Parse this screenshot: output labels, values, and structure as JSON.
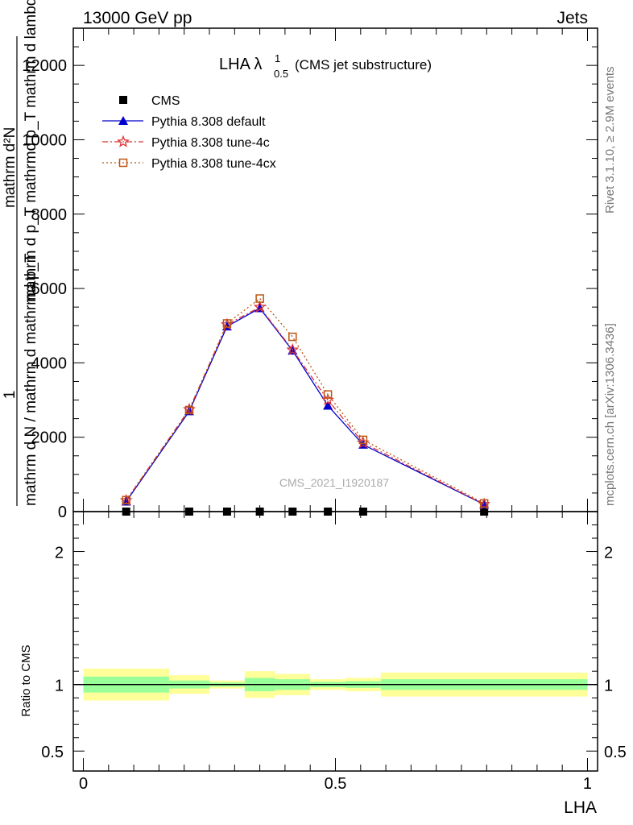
{
  "header": {
    "left": "13000 GeV pp",
    "right": "Jets"
  },
  "title": {
    "main": "LHA λ",
    "sup": "1",
    "sub": "0.5",
    "suffix": "(CMS jet substructure)"
  },
  "side_labels": {
    "rivet": "Rivet 3.1.10, ≥ 2.9M events",
    "mcplots": "mcplots.cern.ch [arXiv:1306.3436]"
  },
  "watermark": "CMS_2021_I1920187",
  "y_label_main": {
    "numerator": "mathrm d²N",
    "denominator": "mathrm d p_T mathrmd p_T mathrm d lambda",
    "prefix_num": "1",
    "prefix_den": "mathrm d N / mathrm d mathrmd p_T"
  },
  "y_label_ratio": "Ratio to CMS",
  "x_label": "LHA",
  "chart_data": [
    {
      "type": "line",
      "panel": "main",
      "xlim": [
        -0.02,
        1.02
      ],
      "ylim": [
        0,
        13000
      ],
      "y_ticks": [
        0,
        2000,
        4000,
        6000,
        8000,
        10000,
        12000
      ],
      "y_tick_labels": [
        "0",
        "2000",
        "4000",
        "6000",
        "8000",
        "10000",
        "12000"
      ],
      "legend_position": "top-left",
      "x": [
        0.085,
        0.21,
        0.285,
        0.35,
        0.415,
        0.485,
        0.555,
        0.795
      ],
      "series": [
        {
          "name": "CMS",
          "color": "#000000",
          "marker": "square",
          "values": [
            0,
            0,
            0,
            0,
            0,
            0,
            0,
            0
          ]
        },
        {
          "name": "Pythia 8.308 default",
          "color": "#0000cc",
          "marker": "triangle",
          "values": [
            270,
            2700,
            4980,
            5470,
            4330,
            2850,
            1800,
            190
          ]
        },
        {
          "name": "Pythia 8.308 tune-4c",
          "color": "#dd3333",
          "marker": "star",
          "values": [
            300,
            2750,
            5030,
            5500,
            4350,
            3000,
            1850,
            200
          ]
        },
        {
          "name": "Pythia 8.308 tune-4cx",
          "color": "#bb5511",
          "marker": "open-square",
          "values": [
            310,
            2730,
            5060,
            5730,
            4700,
            3150,
            1930,
            220
          ]
        }
      ]
    },
    {
      "type": "area",
      "panel": "ratio",
      "xlim": [
        -0.02,
        1.02
      ],
      "ylim": [
        0.35,
        2.3
      ],
      "y_ticks": [
        0.5,
        1,
        2
      ],
      "y_tick_labels": [
        "0.5",
        "1",
        "2"
      ],
      "x_ticks": [
        0,
        0.5,
        1
      ],
      "x_tick_labels": [
        "0",
        "0.5",
        "1"
      ],
      "reference": 1,
      "bins": [
        {
          "lo": 0.0,
          "hi": 0.17,
          "inner": [
            0.94,
            1.06
          ],
          "outer": [
            0.88,
            1.12
          ]
        },
        {
          "lo": 0.17,
          "hi": 0.25,
          "inner": [
            0.97,
            1.03
          ],
          "outer": [
            0.93,
            1.07
          ]
        },
        {
          "lo": 0.25,
          "hi": 0.32,
          "inner": [
            0.985,
            1.015
          ],
          "outer": [
            0.97,
            1.03
          ]
        },
        {
          "lo": 0.32,
          "hi": 0.38,
          "inner": [
            0.95,
            1.05
          ],
          "outer": [
            0.9,
            1.1
          ]
        },
        {
          "lo": 0.38,
          "hi": 0.45,
          "inner": [
            0.96,
            1.04
          ],
          "outer": [
            0.92,
            1.08
          ]
        },
        {
          "lo": 0.45,
          "hi": 0.52,
          "inner": [
            0.98,
            1.02
          ],
          "outer": [
            0.96,
            1.04
          ]
        },
        {
          "lo": 0.52,
          "hi": 0.59,
          "inner": [
            0.975,
            1.025
          ],
          "outer": [
            0.95,
            1.05
          ]
        },
        {
          "lo": 0.59,
          "hi": 1.0,
          "inner": [
            0.96,
            1.04
          ],
          "outer": [
            0.91,
            1.09
          ]
        }
      ],
      "band_colors": {
        "inner": "#99ff99",
        "outer": "#ffff99"
      }
    }
  ]
}
